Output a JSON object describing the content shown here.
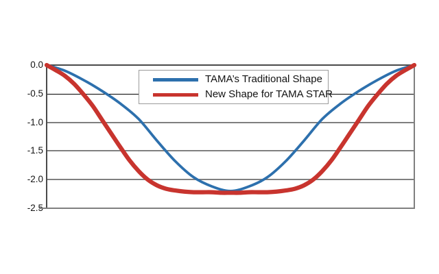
{
  "figure": {
    "background_color": "#ffffff"
  },
  "chart_data": {
    "type": "line",
    "title": "",
    "xlabel": "",
    "ylabel": "",
    "x_axis": {
      "min": 0,
      "max": 1,
      "tick_labels_visible": false
    },
    "y_axis": {
      "min": -2.5,
      "max": 0,
      "tick_values": [
        0,
        -0.5,
        -1.0,
        -1.5,
        -2.0,
        -2.5
      ],
      "tick_labels": [
        "0.0",
        "-0.5",
        "-1.0",
        "-1.5",
        "-2.0",
        "-2.5"
      ]
    },
    "grid": {
      "horizontal": true,
      "vertical": false,
      "color": "#7f7f7f",
      "highlight_value": -0.5,
      "highlight_color": "#000000"
    },
    "legend": {
      "position": "top-center",
      "border_color": "#9a9a9a",
      "entries": [
        {
          "label": "TAMA’s Traditional Shape",
          "color": "#2d70ad"
        },
        {
          "label": "New Shape for TAMA STAR",
          "color": "#c8342e"
        }
      ]
    },
    "series": [
      {
        "name": "TAMA’s Traditional Shape",
        "color": "#2d70ad",
        "stroke_width": 3.8,
        "points": [
          [
            0.0,
            0.0
          ],
          [
            0.05,
            -0.1
          ],
          [
            0.1,
            -0.26
          ],
          [
            0.15,
            -0.45
          ],
          [
            0.2,
            -0.67
          ],
          [
            0.25,
            -0.94
          ],
          [
            0.3,
            -1.32
          ],
          [
            0.35,
            -1.68
          ],
          [
            0.4,
            -1.96
          ],
          [
            0.45,
            -2.12
          ],
          [
            0.5,
            -2.2
          ],
          [
            0.55,
            -2.12
          ],
          [
            0.6,
            -1.96
          ],
          [
            0.65,
            -1.68
          ],
          [
            0.7,
            -1.32
          ],
          [
            0.75,
            -0.94
          ],
          [
            0.8,
            -0.67
          ],
          [
            0.85,
            -0.45
          ],
          [
            0.9,
            -0.26
          ],
          [
            0.95,
            -0.1
          ],
          [
            1.0,
            0.0
          ]
        ]
      },
      {
        "name": "New Shape for TAMA STAR",
        "color": "#c8342e",
        "stroke_width": 6.2,
        "points": [
          [
            0.0,
            0.0
          ],
          [
            0.025,
            -0.09
          ],
          [
            0.05,
            -0.19
          ],
          [
            0.075,
            -0.33
          ],
          [
            0.1,
            -0.51
          ],
          [
            0.125,
            -0.71
          ],
          [
            0.15,
            -0.95
          ],
          [
            0.175,
            -1.19
          ],
          [
            0.2,
            -1.43
          ],
          [
            0.225,
            -1.66
          ],
          [
            0.25,
            -1.85
          ],
          [
            0.275,
            -2.0
          ],
          [
            0.3,
            -2.1
          ],
          [
            0.325,
            -2.16
          ],
          [
            0.35,
            -2.19
          ],
          [
            0.375,
            -2.21
          ],
          [
            0.4,
            -2.22
          ],
          [
            0.425,
            -2.22
          ],
          [
            0.45,
            -2.22
          ],
          [
            0.475,
            -2.23
          ],
          [
            0.5,
            -2.23
          ],
          [
            0.525,
            -2.23
          ],
          [
            0.55,
            -2.22
          ],
          [
            0.575,
            -2.22
          ],
          [
            0.6,
            -2.22
          ],
          [
            0.625,
            -2.21
          ],
          [
            0.65,
            -2.19
          ],
          [
            0.675,
            -2.16
          ],
          [
            0.7,
            -2.1
          ],
          [
            0.725,
            -2.0
          ],
          [
            0.75,
            -1.85
          ],
          [
            0.775,
            -1.66
          ],
          [
            0.8,
            -1.43
          ],
          [
            0.825,
            -1.19
          ],
          [
            0.85,
            -0.95
          ],
          [
            0.875,
            -0.71
          ],
          [
            0.9,
            -0.51
          ],
          [
            0.925,
            -0.33
          ],
          [
            0.95,
            -0.19
          ],
          [
            0.975,
            -0.09
          ],
          [
            1.0,
            0.0
          ]
        ]
      }
    ]
  }
}
